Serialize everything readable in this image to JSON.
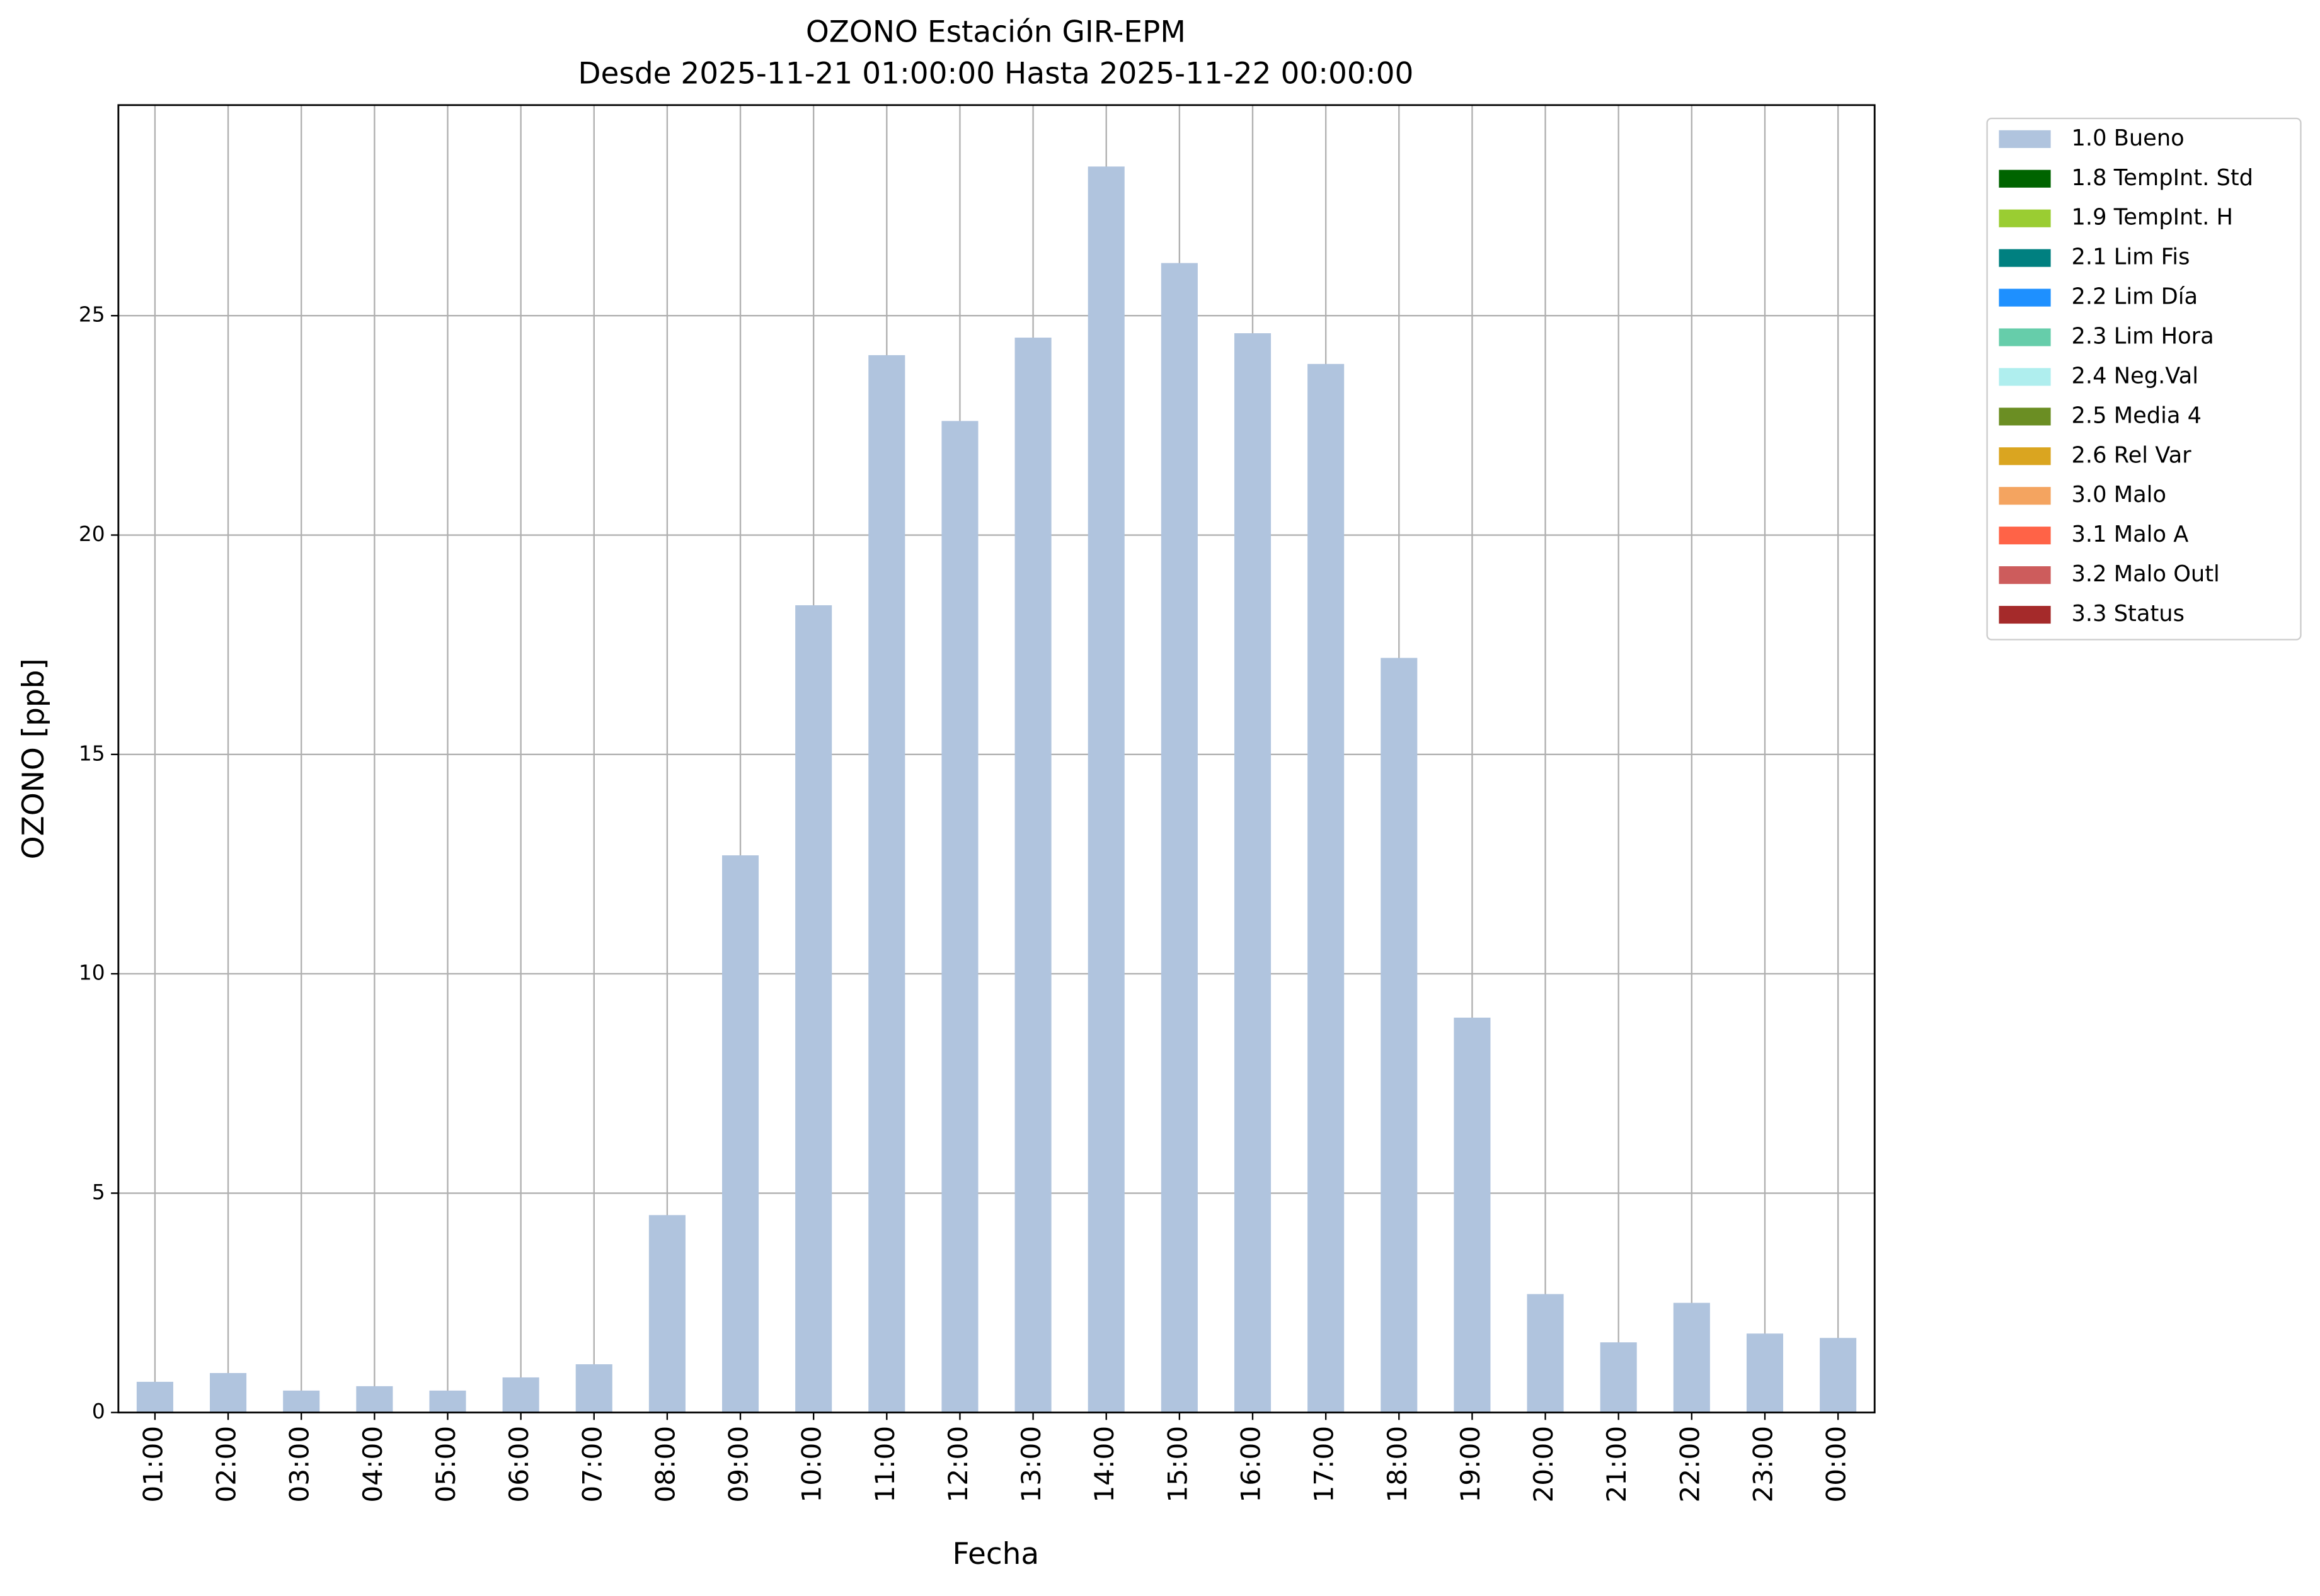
{
  "chart_data": {
    "type": "bar",
    "title": "OZONO Estación GIR-EPM",
    "subtitle": "Desde 2025-11-21 01:00:00 Hasta 2025-11-22 00:00:00",
    "x_label": "Fecha",
    "y_label": "OZONO [ppb]",
    "categories": [
      "01:00",
      "02:00",
      "03:00",
      "04:00",
      "05:00",
      "06:00",
      "07:00",
      "08:00",
      "09:00",
      "10:00",
      "11:00",
      "12:00",
      "13:00",
      "14:00",
      "15:00",
      "16:00",
      "17:00",
      "18:00",
      "19:00",
      "20:00",
      "21:00",
      "22:00",
      "23:00",
      "00:00"
    ],
    "series": [
      {
        "name": "1.0 Bueno",
        "color": "#b0c4de",
        "values": [
          0.7,
          0.9,
          0.5,
          0.6,
          0.5,
          0.8,
          1.1,
          4.5,
          12.7,
          18.4,
          24.1,
          22.6,
          24.5,
          28.4,
          26.2,
          24.6,
          23.9,
          17.2,
          9.0,
          2.7,
          1.6,
          2.5,
          1.8,
          1.7
        ]
      },
      {
        "name": "1.8 TempInt. Std",
        "color": "#006400",
        "values": [
          null,
          null,
          null,
          null,
          null,
          null,
          null,
          null,
          null,
          null,
          null,
          null,
          null,
          null,
          null,
          null,
          null,
          null,
          null,
          null,
          null,
          null,
          null,
          null
        ]
      },
      {
        "name": "1.9 TempInt. H",
        "color": "#9acd32",
        "values": [
          null,
          null,
          null,
          null,
          null,
          null,
          null,
          null,
          null,
          null,
          null,
          null,
          null,
          null,
          null,
          null,
          null,
          null,
          null,
          null,
          null,
          null,
          null,
          null
        ]
      },
      {
        "name": "2.1 Lim Fis",
        "color": "#008080",
        "values": [
          null,
          null,
          null,
          null,
          null,
          null,
          null,
          null,
          null,
          null,
          null,
          null,
          null,
          null,
          null,
          null,
          null,
          null,
          null,
          null,
          null,
          null,
          null,
          null
        ]
      },
      {
        "name": "2.2 Lim Día",
        "color": "#1e90ff",
        "values": [
          null,
          null,
          null,
          null,
          null,
          null,
          null,
          null,
          null,
          null,
          null,
          null,
          null,
          null,
          null,
          null,
          null,
          null,
          null,
          null,
          null,
          null,
          null,
          null
        ]
      },
      {
        "name": "2.3 Lim Hora",
        "color": "#66cdaa",
        "values": [
          null,
          null,
          null,
          null,
          null,
          null,
          null,
          null,
          null,
          null,
          null,
          null,
          null,
          null,
          null,
          null,
          null,
          null,
          null,
          null,
          null,
          null,
          null,
          null
        ]
      },
      {
        "name": "2.4 Neg.Val",
        "color": "#afeeee",
        "values": [
          null,
          null,
          null,
          null,
          null,
          null,
          null,
          null,
          null,
          null,
          null,
          null,
          null,
          null,
          null,
          null,
          null,
          null,
          null,
          null,
          null,
          null,
          null,
          null
        ]
      },
      {
        "name": "2.5 Media 4",
        "color": "#6b8e23",
        "values": [
          null,
          null,
          null,
          null,
          null,
          null,
          null,
          null,
          null,
          null,
          null,
          null,
          null,
          null,
          null,
          null,
          null,
          null,
          null,
          null,
          null,
          null,
          null,
          null
        ]
      },
      {
        "name": "2.6 Rel Var",
        "color": "#daa520",
        "values": [
          null,
          null,
          null,
          null,
          null,
          null,
          null,
          null,
          null,
          null,
          null,
          null,
          null,
          null,
          null,
          null,
          null,
          null,
          null,
          null,
          null,
          null,
          null,
          null
        ]
      },
      {
        "name": "3.0 Malo",
        "color": "#f4a460",
        "values": [
          null,
          null,
          null,
          null,
          null,
          null,
          null,
          null,
          null,
          null,
          null,
          null,
          null,
          null,
          null,
          null,
          null,
          null,
          null,
          null,
          null,
          null,
          null,
          null
        ]
      },
      {
        "name": "3.1 Malo A",
        "color": "#ff6347",
        "values": [
          null,
          null,
          null,
          null,
          null,
          null,
          null,
          null,
          null,
          null,
          null,
          null,
          null,
          null,
          null,
          null,
          null,
          null,
          null,
          null,
          null,
          null,
          null,
          null
        ]
      },
      {
        "name": "3.2 Malo Outl",
        "color": "#cd5c5c",
        "values": [
          null,
          null,
          null,
          null,
          null,
          null,
          null,
          null,
          null,
          null,
          null,
          null,
          null,
          null,
          null,
          null,
          null,
          null,
          null,
          null,
          null,
          null,
          null,
          null
        ]
      },
      {
        "name": "3.3 Status",
        "color": "#a52a2a",
        "values": [
          null,
          null,
          null,
          null,
          null,
          null,
          null,
          null,
          null,
          null,
          null,
          null,
          null,
          null,
          null,
          null,
          null,
          null,
          null,
          null,
          null,
          null,
          null,
          null
        ]
      }
    ],
    "ylim": [
      0,
      29.8
    ],
    "yticks": [
      0,
      5,
      10,
      15,
      20,
      25
    ],
    "grid": true,
    "legend": "outside-upper-right"
  }
}
